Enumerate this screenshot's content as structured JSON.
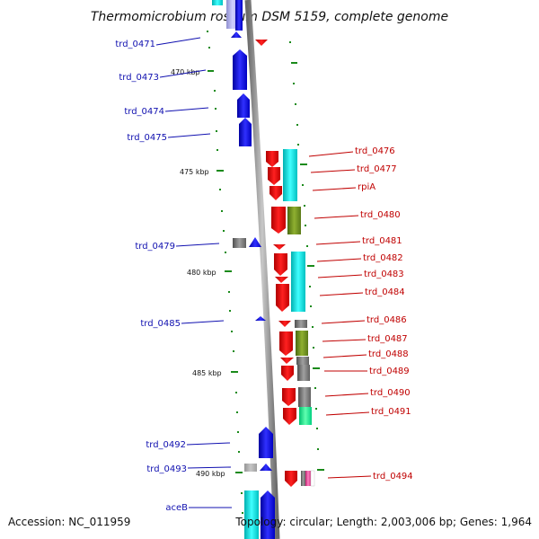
{
  "title": "Thermomicrobium roseum DSM 5159, complete genome",
  "footer": {
    "accession": "Accession: NC_011959",
    "summary": "Topology: circular; Length: 2,003,006 bp; Genes: 1,964"
  },
  "ticks": [
    {
      "label": "470 kbp",
      "major": true
    },
    {
      "label": "475 kbp",
      "major": true
    },
    {
      "label": "480 kbp",
      "major": true
    },
    {
      "label": "485 kbp",
      "major": true
    },
    {
      "label": "490 kbp",
      "major": true
    }
  ],
  "genes_left": [
    {
      "label": "trd_0471"
    },
    {
      "label": "trd_0473"
    },
    {
      "label": "trd_0474"
    },
    {
      "label": "trd_0475"
    },
    {
      "label": "trd_0479"
    },
    {
      "label": "trd_0485"
    },
    {
      "label": "trd_0492"
    },
    {
      "label": "trd_0493"
    },
    {
      "label": "aceB"
    }
  ],
  "genes_right": [
    {
      "label": "trd_0476"
    },
    {
      "label": "trd_0477"
    },
    {
      "label": "rpiA"
    },
    {
      "label": "trd_0480"
    },
    {
      "label": "trd_0481"
    },
    {
      "label": "trd_0482"
    },
    {
      "label": "trd_0483"
    },
    {
      "label": "trd_0484"
    },
    {
      "label": "trd_0486"
    },
    {
      "label": "trd_0487"
    },
    {
      "label": "trd_0488"
    },
    {
      "label": "trd_0489"
    },
    {
      "label": "trd_0490"
    },
    {
      "label": "trd_0491"
    },
    {
      "label": "trd_0494"
    }
  ],
  "colors": {
    "forward_strand": "#ff0000",
    "reverse_strand": "#0000ff",
    "cog_cyan": "#00e5e5",
    "cog_olive": "#6b8e23",
    "cog_gray": "#808080",
    "cog_green": "#00ff99",
    "cog_pink": "#ff69b4",
    "backbone": "#888888",
    "tick": "#1a8a1a"
  }
}
